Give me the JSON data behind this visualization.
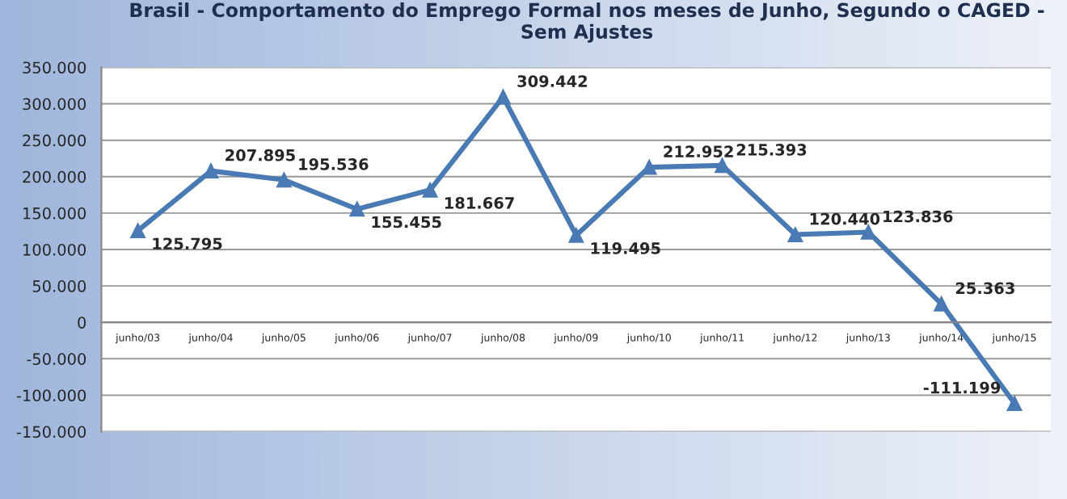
{
  "chart_data": {
    "type": "line",
    "title": "Brasil - Comportamento do Emprego Formal nos meses de Junho, Segundo o CAGED -\nSem Ajustes",
    "categories": [
      "junho/03",
      "junho/04",
      "junho/05",
      "junho/06",
      "junho/07",
      "junho/08",
      "junho/09",
      "junho/10",
      "junho/11",
      "junho/12",
      "junho/13",
      "junho/14",
      "junho/15"
    ],
    "series": [
      {
        "color": "#4a7ab4",
        "values": [
          125795,
          207895,
          195536,
          155455,
          181667,
          309442,
          119495,
          212952,
          215393,
          120440,
          123836,
          25363,
          -111199
        ],
        "value_labels": [
          "125.795",
          "207.895",
          "195.536",
          "155.455",
          "181.667",
          "309.442",
          "119.495",
          "212.952",
          "215.393",
          "120.440",
          "123.836",
          "25.363",
          "-111.199"
        ]
      }
    ],
    "ylim": [
      -150000,
      350000
    ],
    "yticks": [
      {
        "value": -150000,
        "label": "-150.000"
      },
      {
        "value": -100000,
        "label": "-100.000"
      },
      {
        "value": -50000,
        "label": "-50.000"
      },
      {
        "value": 0,
        "label": "0"
      },
      {
        "value": 50000,
        "label": "50.000"
      },
      {
        "value": 100000,
        "label": "100.000"
      },
      {
        "value": 150000,
        "label": "150.000"
      },
      {
        "value": 200000,
        "label": "200.000"
      },
      {
        "value": 250000,
        "label": "250.000"
      },
      {
        "value": 300000,
        "label": "300.000"
      },
      {
        "value": 350000,
        "label": "350.000"
      }
    ],
    "grid": "y",
    "marker": "triangle",
    "line_style": "solid"
  }
}
